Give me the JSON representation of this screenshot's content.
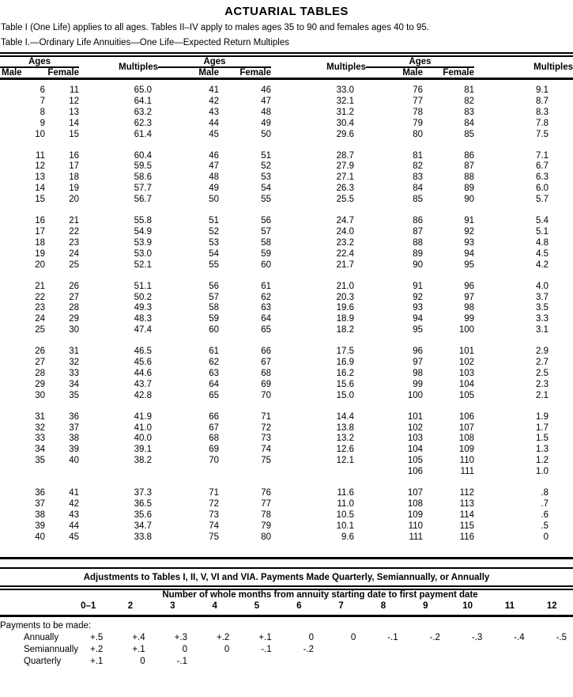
{
  "doc": {
    "title": "ACTUARIAL TABLES",
    "intro": "Table I (One Life) applies to all ages. Tables II–IV apply to males ages 35 to 90 and females ages 40 to 95.",
    "table1_caption": "Table I.—Ordinary Life Annuities—One Life—Expected Return Multiples"
  },
  "table1": {
    "headers": {
      "ages": "Ages",
      "male": "Male",
      "female": "Female",
      "multiples": "Multiples"
    },
    "columns": [
      "Male",
      "Female",
      "Multiples",
      "Male",
      "Female",
      "Multiples",
      "Male",
      "Female",
      "Multiples"
    ],
    "blocks": [
      [
        [
          "6",
          "11",
          "65.0",
          "41",
          "46",
          "33.0",
          "76",
          "81",
          "9.1"
        ],
        [
          "7",
          "12",
          "64.1",
          "42",
          "47",
          "32.1",
          "77",
          "82",
          "8.7"
        ],
        [
          "8",
          "13",
          "63.2",
          "43",
          "48",
          "31.2",
          "78",
          "83",
          "8.3"
        ],
        [
          "9",
          "14",
          "62.3",
          "44",
          "49",
          "30.4",
          "79",
          "84",
          "7.8"
        ],
        [
          "10",
          "15",
          "61.4",
          "45",
          "50",
          "29.6",
          "80",
          "85",
          "7.5"
        ]
      ],
      [
        [
          "11",
          "16",
          "60.4",
          "46",
          "51",
          "28.7",
          "81",
          "86",
          "7.1"
        ],
        [
          "12",
          "17",
          "59.5",
          "47",
          "52",
          "27.9",
          "82",
          "87",
          "6.7"
        ],
        [
          "13",
          "18",
          "58.6",
          "48",
          "53",
          "27.1",
          "83",
          "88",
          "6.3"
        ],
        [
          "14",
          "19",
          "57.7",
          "49",
          "54",
          "26.3",
          "84",
          "89",
          "6.0"
        ],
        [
          "15",
          "20",
          "56.7",
          "50",
          "55",
          "25.5",
          "85",
          "90",
          "5.7"
        ]
      ],
      [
        [
          "16",
          "21",
          "55.8",
          "51",
          "56",
          "24.7",
          "86",
          "91",
          "5.4"
        ],
        [
          "17",
          "22",
          "54.9",
          "52",
          "57",
          "24.0",
          "87",
          "92",
          "5.1"
        ],
        [
          "18",
          "23",
          "53.9",
          "53",
          "58",
          "23.2",
          "88",
          "93",
          "4.8"
        ],
        [
          "19",
          "24",
          "53.0",
          "54",
          "59",
          "22.4",
          "89",
          "94",
          "4.5"
        ],
        [
          "20",
          "25",
          "52.1",
          "55",
          "60",
          "21.7",
          "90",
          "95",
          "4.2"
        ]
      ],
      [
        [
          "21",
          "26",
          "51.1",
          "56",
          "61",
          "21.0",
          "91",
          "96",
          "4.0"
        ],
        [
          "22",
          "27",
          "50.2",
          "57",
          "62",
          "20.3",
          "92",
          "97",
          "3.7"
        ],
        [
          "23",
          "28",
          "49.3",
          "58",
          "63",
          "19.6",
          "93",
          "98",
          "3.5"
        ],
        [
          "24",
          "29",
          "48.3",
          "59",
          "64",
          "18.9",
          "94",
          "99",
          "3.3"
        ],
        [
          "25",
          "30",
          "47.4",
          "60",
          "65",
          "18.2",
          "95",
          "100",
          "3.1"
        ]
      ],
      [
        [
          "26",
          "31",
          "46.5",
          "61",
          "66",
          "17.5",
          "96",
          "101",
          "2.9"
        ],
        [
          "27",
          "32",
          "45.6",
          "62",
          "67",
          "16.9",
          "97",
          "102",
          "2.7"
        ],
        [
          "28",
          "33",
          "44.6",
          "63",
          "68",
          "16.2",
          "98",
          "103",
          "2.5"
        ],
        [
          "29",
          "34",
          "43.7",
          "64",
          "69",
          "15.6",
          "99",
          "104",
          "2.3"
        ],
        [
          "30",
          "35",
          "42.8",
          "65",
          "70",
          "15.0",
          "100",
          "105",
          "2.1"
        ]
      ],
      [
        [
          "31",
          "36",
          "41.9",
          "66",
          "71",
          "14.4",
          "101",
          "106",
          "1.9"
        ],
        [
          "32",
          "37",
          "41.0",
          "67",
          "72",
          "13.8",
          "102",
          "107",
          "1.7"
        ],
        [
          "33",
          "38",
          "40.0",
          "68",
          "73",
          "13.2",
          "103",
          "108",
          "1.5"
        ],
        [
          "34",
          "39",
          "39.1",
          "69",
          "74",
          "12.6",
          "104",
          "109",
          "1.3"
        ],
        [
          "35",
          "40",
          "38.2",
          "70",
          "75",
          "12.1",
          "105",
          "110",
          "1.2"
        ],
        [
          "",
          "",
          "",
          "",
          "",
          "",
          "106",
          "111",
          "1.0"
        ]
      ],
      [
        [
          "36",
          "41",
          "37.3",
          "71",
          "76",
          "11.6",
          "107",
          "112",
          ".8"
        ],
        [
          "37",
          "42",
          "36.5",
          "72",
          "77",
          "11.0",
          "108",
          "113",
          ".7"
        ],
        [
          "38",
          "43",
          "35.6",
          "73",
          "78",
          "10.5",
          "109",
          "114",
          ".6"
        ],
        [
          "39",
          "44",
          "34.7",
          "74",
          "79",
          "10.1",
          "110",
          "115",
          ".5"
        ],
        [
          "40",
          "45",
          "33.8",
          "75",
          "80",
          "9.6",
          "111",
          "116",
          "0"
        ]
      ]
    ]
  },
  "adjustments": {
    "title": "Adjustments to Tables I, II, V, VI and VIA. Payments Made Quarterly, Semiannually, or Annually",
    "months_header": "Number of whole months from annuity starting date to first payment date",
    "month_cols": [
      "0–1",
      "2",
      "3",
      "4",
      "5",
      "6",
      "7",
      "8",
      "9",
      "10",
      "11",
      "12"
    ],
    "section_label": "Payments to be made:",
    "rows": [
      {
        "label": "Annually",
        "values": [
          "+.5",
          "+.4",
          "+.3",
          "+.2",
          "+.1",
          "0",
          "0",
          "-.1",
          "-.2",
          "-.3",
          "-.4",
          "-.5"
        ]
      },
      {
        "label": "Semiannually",
        "values": [
          "+.2",
          "+.1",
          "0",
          "0",
          "-.1",
          "-.2",
          "",
          "",
          "",
          "",
          "",
          ""
        ]
      },
      {
        "label": "Quarterly",
        "values": [
          "+.1",
          "0",
          "-.1",
          "",
          "",
          "",
          "",
          "",
          "",
          "",
          "",
          ""
        ]
      }
    ]
  }
}
